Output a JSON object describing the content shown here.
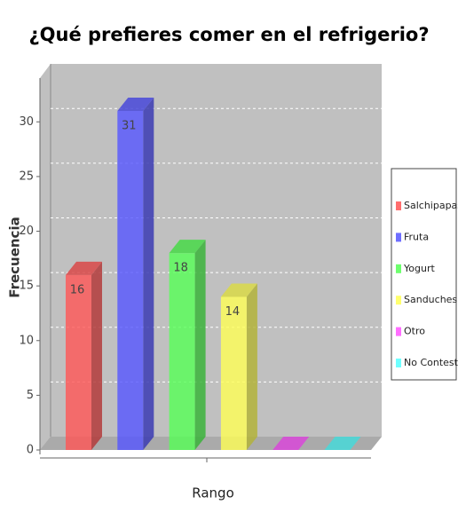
{
  "chart_data": {
    "type": "bar3d",
    "title": "¿Qué prefieres comer en el refrigerio?",
    "x_label": "Rango",
    "y_label": "Frecuencia",
    "categories": [
      null
    ],
    "series": [
      {
        "name": "Salchipapas.",
        "color": "#ff5555",
        "values": [
          16
        ]
      },
      {
        "name": "Fruta",
        "color": "#5555ff",
        "values": [
          31
        ]
      },
      {
        "name": "Yogurt",
        "color": "#55ff55",
        "values": [
          18
        ]
      },
      {
        "name": "Sanduches",
        "color": "#ffff55",
        "values": [
          14
        ]
      },
      {
        "name": "Otro",
        "color": "#ff55ff",
        "values": [
          0
        ],
        "value_labels": [
          null
        ]
      },
      {
        "name": "No Contestó",
        "color": "#55ffff",
        "values": [
          0
        ],
        "value_labels": [
          null
        ]
      }
    ],
    "ylim": [
      0,
      34
    ],
    "yticks": [
      0,
      5,
      10,
      15,
      20,
      25,
      30
    ],
    "grid": true,
    "legend": "right"
  }
}
